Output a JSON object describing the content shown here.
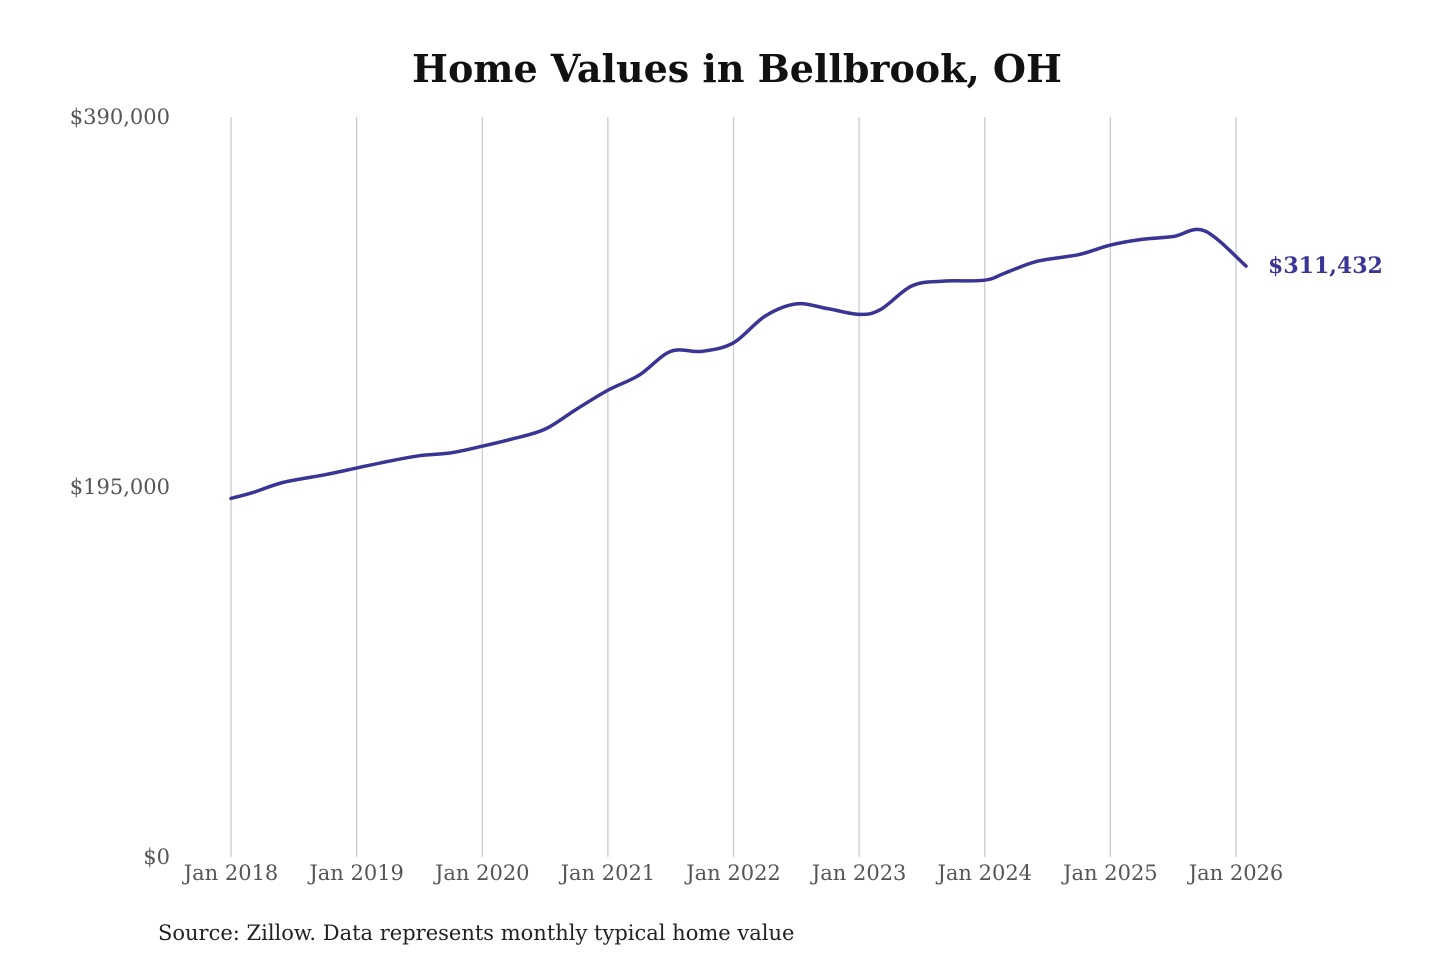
{
  "chart_data": {
    "type": "line",
    "title": "Home Values in Bellbrook, OH",
    "xlabel": "",
    "ylabel": "",
    "ylim": [
      0,
      390000
    ],
    "y_ticks": [
      {
        "value": 0,
        "label": "$0"
      },
      {
        "value": 195000,
        "label": "$195,000"
      },
      {
        "value": 390000,
        "label": "$390,000"
      }
    ],
    "x_ticks": [
      {
        "value": 2018.0,
        "label": "Jan 2018"
      },
      {
        "value": 2019.0,
        "label": "Jan 2019"
      },
      {
        "value": 2020.0,
        "label": "Jan 2020"
      },
      {
        "value": 2021.0,
        "label": "Jan 2021"
      },
      {
        "value": 2022.0,
        "label": "Jan 2022"
      },
      {
        "value": 2023.0,
        "label": "Jan 2023"
      },
      {
        "value": 2024.0,
        "label": "Jan 2024"
      },
      {
        "value": 2025.0,
        "label": "Jan 2025"
      },
      {
        "value": 2026.0,
        "label": "Jan 2026"
      }
    ],
    "xlim": [
      2018.0,
      2026.0
    ],
    "grid": "vertical",
    "legend": "none",
    "series": [
      {
        "color": "#3a3494",
        "points": [
          {
            "x": 2018.0,
            "y": 189000
          },
          {
            "x": 2018.17,
            "y": 192000
          },
          {
            "x": 2018.42,
            "y": 197500
          },
          {
            "x": 2018.75,
            "y": 201500
          },
          {
            "x": 2019.0,
            "y": 205000
          },
          {
            "x": 2019.25,
            "y": 208500
          },
          {
            "x": 2019.5,
            "y": 211500
          },
          {
            "x": 2019.75,
            "y": 213000
          },
          {
            "x": 2020.0,
            "y": 216500
          },
          {
            "x": 2020.25,
            "y": 220500
          },
          {
            "x": 2020.5,
            "y": 225500
          },
          {
            "x": 2020.75,
            "y": 236000
          },
          {
            "x": 2021.0,
            "y": 246000
          },
          {
            "x": 2021.25,
            "y": 254000
          },
          {
            "x": 2021.5,
            "y": 266500
          },
          {
            "x": 2021.75,
            "y": 266500
          },
          {
            "x": 2022.0,
            "y": 271000
          },
          {
            "x": 2022.25,
            "y": 285000
          },
          {
            "x": 2022.5,
            "y": 291500
          },
          {
            "x": 2022.75,
            "y": 289000
          },
          {
            "x": 2023.0,
            "y": 286000
          },
          {
            "x": 2023.17,
            "y": 288500
          },
          {
            "x": 2023.42,
            "y": 301000
          },
          {
            "x": 2023.67,
            "y": 303500
          },
          {
            "x": 2024.0,
            "y": 304000
          },
          {
            "x": 2024.17,
            "y": 308000
          },
          {
            "x": 2024.42,
            "y": 314000
          },
          {
            "x": 2024.75,
            "y": 317500
          },
          {
            "x": 2025.0,
            "y": 322500
          },
          {
            "x": 2025.25,
            "y": 325500
          },
          {
            "x": 2025.5,
            "y": 327000
          },
          {
            "x": 2025.75,
            "y": 330000
          },
          {
            "x": 2026.08,
            "y": 311432
          }
        ]
      }
    ],
    "annotations": [
      {
        "text": "$311,432",
        "x": 2026.08,
        "y": 311432
      }
    ]
  },
  "footer": {
    "source": "Source: Zillow. Data represents monthly typical home value"
  }
}
